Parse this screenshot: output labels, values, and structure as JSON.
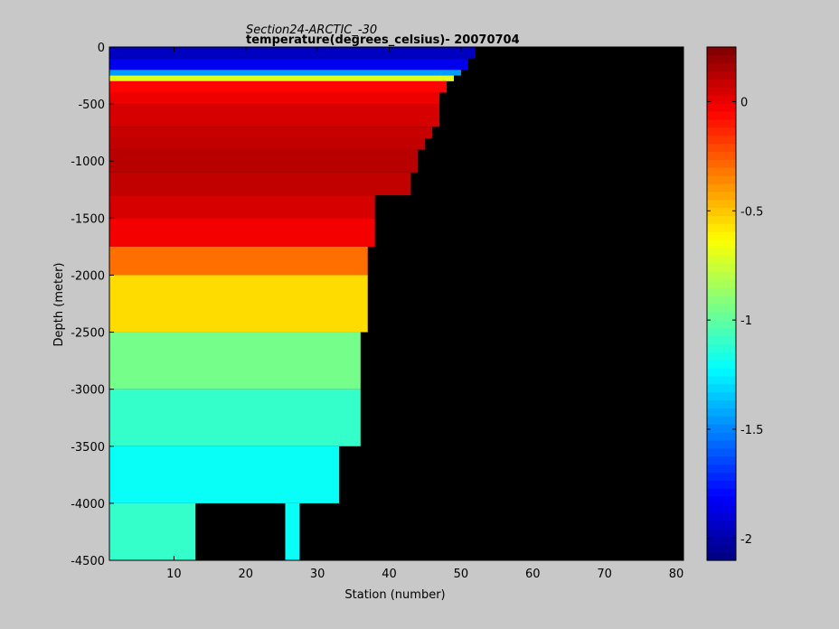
{
  "chart_data": {
    "type": "heatmap",
    "title": "Section24-ARCTIC_-30",
    "subtitle": "temperature(degrees_celsius)- 20070704",
    "xlabel": "Station (number)",
    "ylabel": "Depth (meter)",
    "xlim": [
      1,
      81
    ],
    "ylim": [
      -4500,
      0
    ],
    "x_ticks": [
      10,
      20,
      30,
      40,
      50,
      60,
      70,
      80
    ],
    "y_ticks": [
      0,
      -500,
      -1000,
      -1500,
      -2000,
      -2500,
      -3000,
      -3500,
      -4000,
      -4500
    ],
    "colorbar": {
      "range": [
        -2.1,
        0.25
      ],
      "ticks": [
        0,
        -0.5,
        -1,
        -1.5,
        -2
      ],
      "colormap": "jet"
    },
    "no_data_color": "#000000",
    "layers": [
      {
        "top": 0,
        "bottom": -100,
        "value": -1.95,
        "max_station": 52
      },
      {
        "top": -100,
        "bottom": -200,
        "value": -1.85,
        "max_station": 51
      },
      {
        "top": -200,
        "bottom": -250,
        "value": -1.45,
        "max_station": 50
      },
      {
        "top": -250,
        "bottom": -300,
        "value": -0.7,
        "max_station": 49
      },
      {
        "top": -300,
        "bottom": -400,
        "value": -0.05,
        "max_station": 48
      },
      {
        "top": -400,
        "bottom": -500,
        "value": 0.0,
        "max_station": 47
      },
      {
        "top": -500,
        "bottom": -700,
        "value": 0.05,
        "max_station": 47
      },
      {
        "top": -700,
        "bottom": -800,
        "value": 0.08,
        "max_station": 46
      },
      {
        "top": -800,
        "bottom": -900,
        "value": 0.1,
        "max_station": 45
      },
      {
        "top": -900,
        "bottom": -1100,
        "value": 0.12,
        "max_station": 44
      },
      {
        "top": -1100,
        "bottom": -1300,
        "value": 0.1,
        "max_station": 43
      },
      {
        "top": -1300,
        "bottom": -1500,
        "value": 0.05,
        "max_station": 38
      },
      {
        "top": -1500,
        "bottom": -1750,
        "value": -0.02,
        "max_station": 38
      },
      {
        "top": -1750,
        "bottom": -2000,
        "value": -0.3,
        "max_station": 37
      },
      {
        "top": -2000,
        "bottom": -2500,
        "value": -0.55,
        "max_station": 37
      },
      {
        "top": -2500,
        "bottom": -3000,
        "value": -0.95,
        "max_station": 36
      },
      {
        "top": -3000,
        "bottom": -3500,
        "value": -1.1,
        "max_station": 36
      },
      {
        "top": -3500,
        "bottom": -4000,
        "value": -1.2,
        "max_station": 33
      },
      {
        "top": -4000,
        "bottom": -4500,
        "value": -1.1,
        "max_station": 13
      }
    ],
    "isolated_columns": [
      {
        "station": 26,
        "top": -4000,
        "bottom": -4500,
        "value": -1.2
      }
    ]
  }
}
